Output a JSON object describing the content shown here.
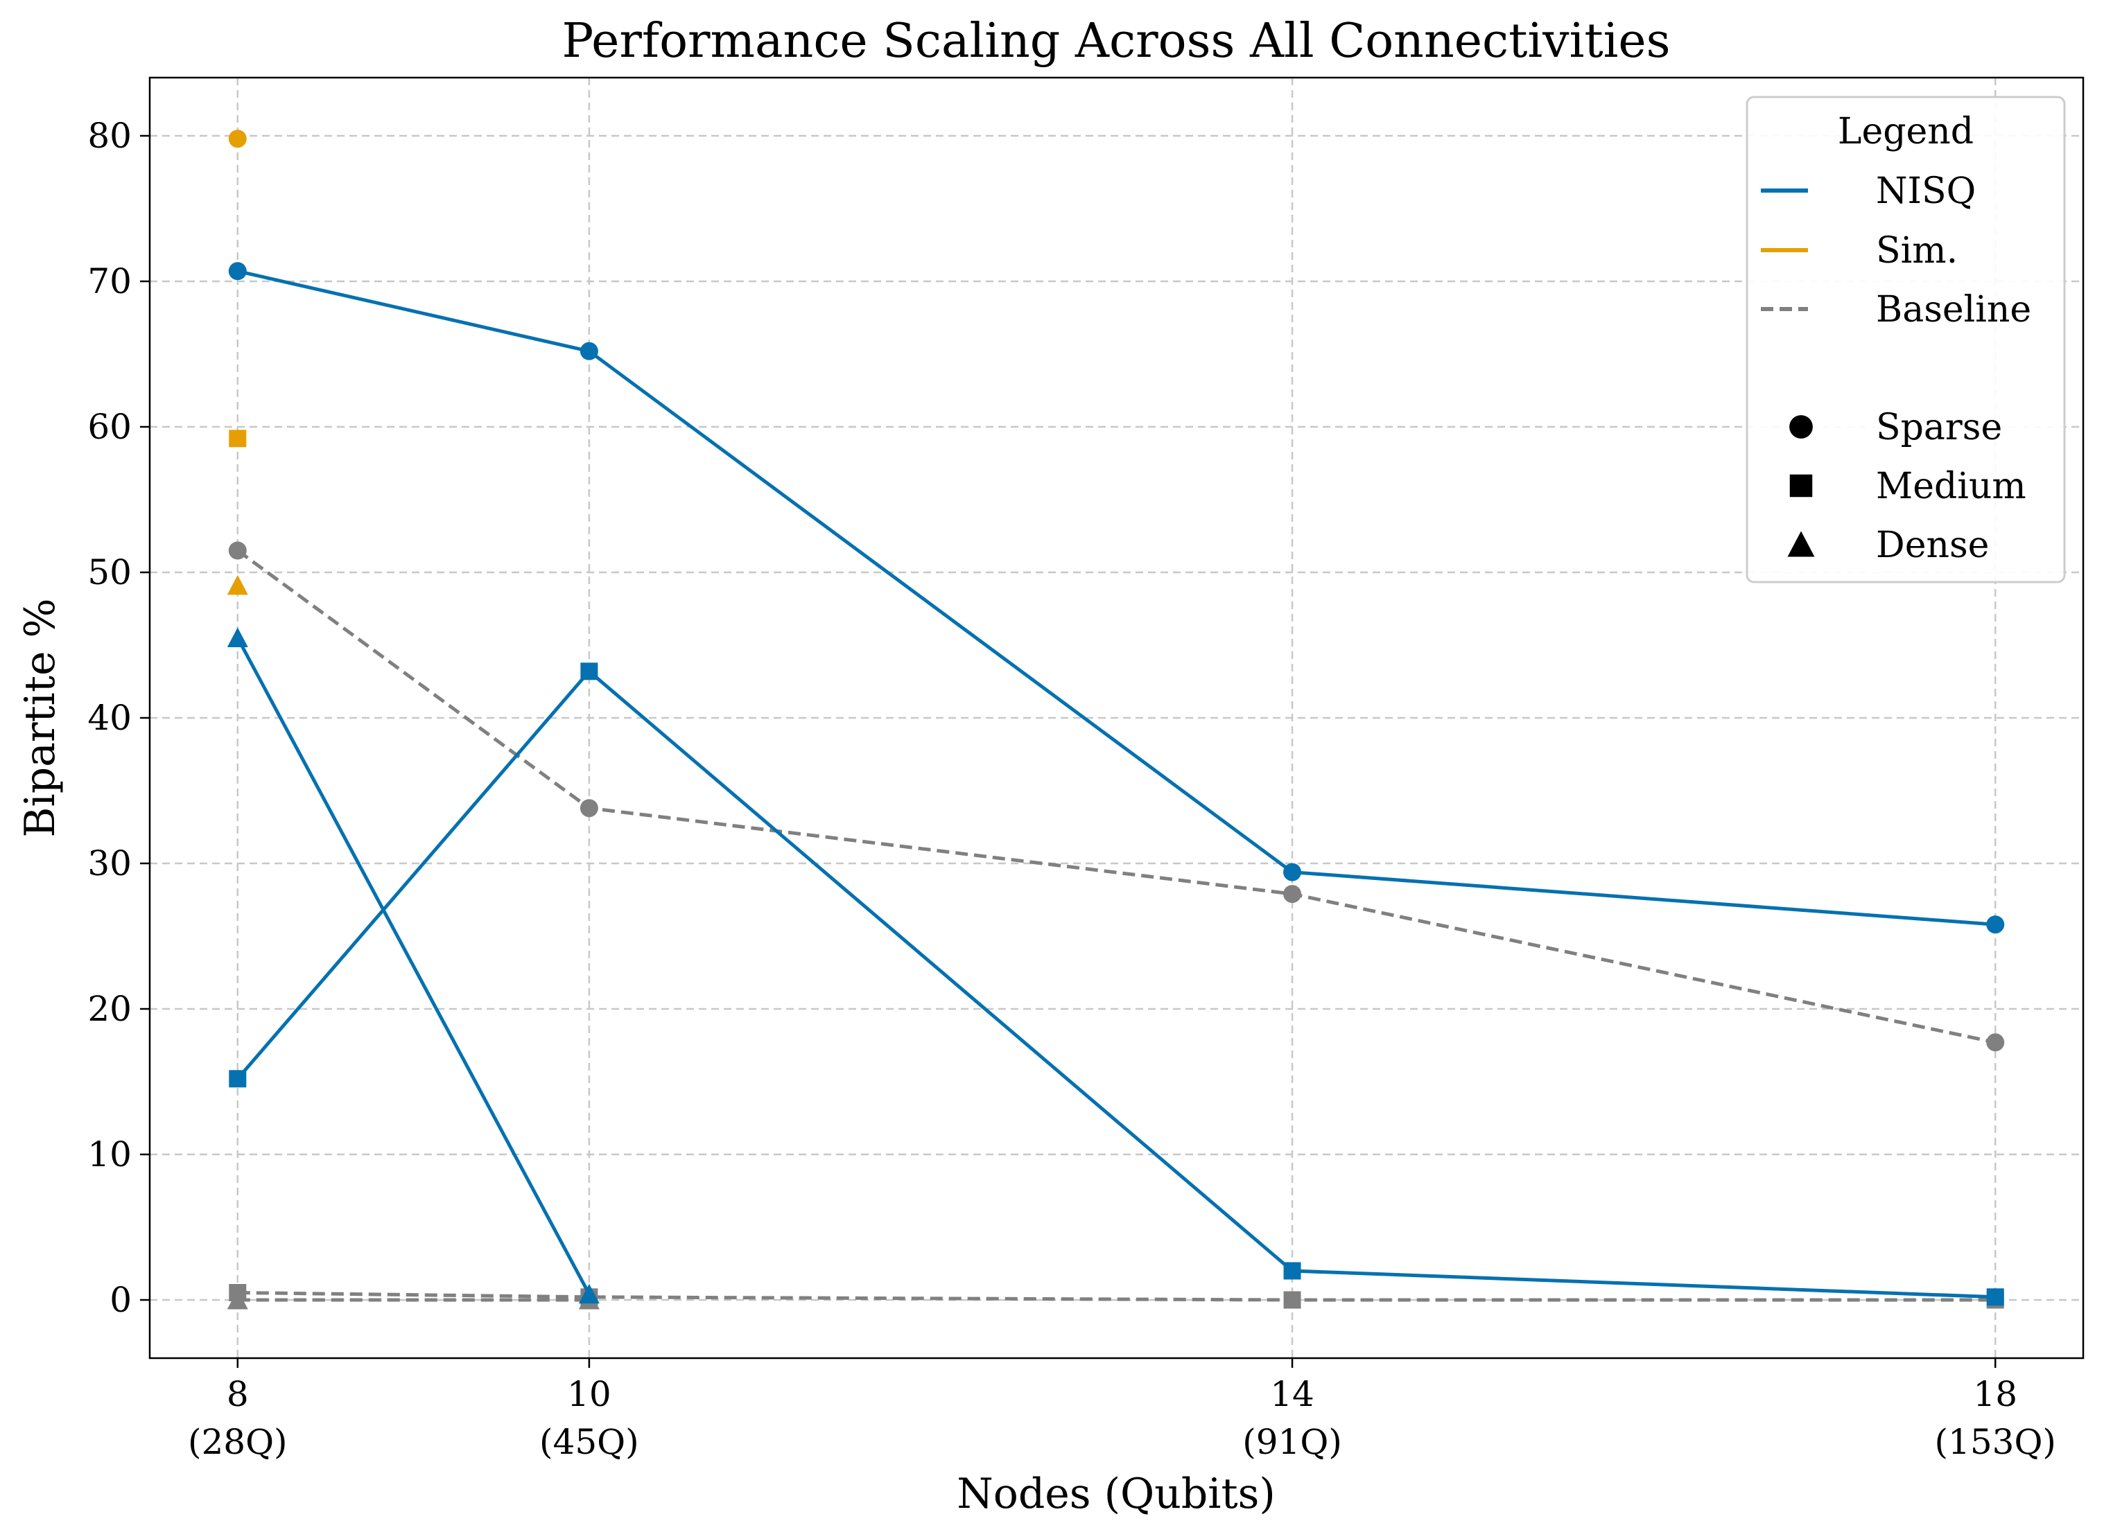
{
  "chart_data": {
    "type": "line",
    "title": "Performance Scaling Across All Connectivities",
    "xlabel": "Nodes (Qubits)",
    "ylabel": "Bipartite %",
    "x": [
      8,
      10,
      14,
      18
    ],
    "x_tick_labels": [
      {
        "value": 8,
        "line1": "8",
        "line2": "(28Q)"
      },
      {
        "value": 10,
        "line1": "10",
        "line2": "(45Q)"
      },
      {
        "value": 14,
        "line1": "14",
        "line2": "(91Q)"
      },
      {
        "value": 18,
        "line1": "18",
        "line2": "(153Q)"
      }
    ],
    "xlim": [
      7.5,
      18.5
    ],
    "ylim": [
      -4,
      84
    ],
    "yticks": [
      0,
      10,
      20,
      30,
      40,
      50,
      60,
      70,
      80
    ],
    "grid": true,
    "legend_position": "top-right",
    "colors": {
      "NISQ": "#0571b0",
      "Sim.": "#e69f00",
      "Baseline": "#808080"
    },
    "series": [
      {
        "name": "NISQ",
        "connectivity": "Sparse",
        "marker": "circle",
        "style": "solid",
        "x": [
          8,
          10,
          14,
          18
        ],
        "values": [
          70.7,
          65.2,
          29.4,
          25.8
        ]
      },
      {
        "name": "NISQ",
        "connectivity": "Medium",
        "marker": "square",
        "style": "solid",
        "x": [
          8,
          10,
          14,
          18
        ],
        "values": [
          15.2,
          43.2,
          2.0,
          0.2
        ]
      },
      {
        "name": "NISQ",
        "connectivity": "Dense",
        "marker": "triangle",
        "style": "solid",
        "x": [
          8,
          10
        ],
        "values": [
          45.5,
          0.4
        ]
      },
      {
        "name": "Sim.",
        "connectivity": "Sparse",
        "marker": "circle",
        "style": "solid",
        "x": [
          8
        ],
        "values": [
          79.8
        ]
      },
      {
        "name": "Sim.",
        "connectivity": "Medium",
        "marker": "square",
        "style": "solid",
        "x": [
          8
        ],
        "values": [
          59.2
        ]
      },
      {
        "name": "Sim.",
        "connectivity": "Dense",
        "marker": "triangle",
        "style": "solid",
        "x": [
          8
        ],
        "values": [
          49.1
        ]
      },
      {
        "name": "Baseline",
        "connectivity": "Sparse",
        "marker": "circle",
        "style": "dashed",
        "x": [
          8,
          10,
          14,
          18
        ],
        "values": [
          51.5,
          33.8,
          27.9,
          17.7
        ]
      },
      {
        "name": "Baseline",
        "connectivity": "Medium",
        "marker": "square",
        "style": "dashed",
        "x": [
          8,
          10,
          14,
          18
        ],
        "values": [
          0.5,
          0.2,
          0.0,
          0.0
        ]
      },
      {
        "name": "Baseline",
        "connectivity": "Dense",
        "marker": "triangle",
        "style": "dashed",
        "x": [
          8,
          10
        ],
        "values": [
          0.0,
          0.0
        ]
      }
    ],
    "legend": {
      "title": "Legend",
      "lines": [
        {
          "label": "NISQ",
          "color": "#0571b0",
          "style": "solid"
        },
        {
          "label": "Sim.",
          "color": "#e69f00",
          "style": "solid"
        },
        {
          "label": "Baseline",
          "color": "#808080",
          "style": "dashed"
        }
      ],
      "markers": [
        {
          "label": "Sparse",
          "marker": "circle"
        },
        {
          "label": "Medium",
          "marker": "square"
        },
        {
          "label": "Dense",
          "marker": "triangle"
        }
      ]
    }
  }
}
